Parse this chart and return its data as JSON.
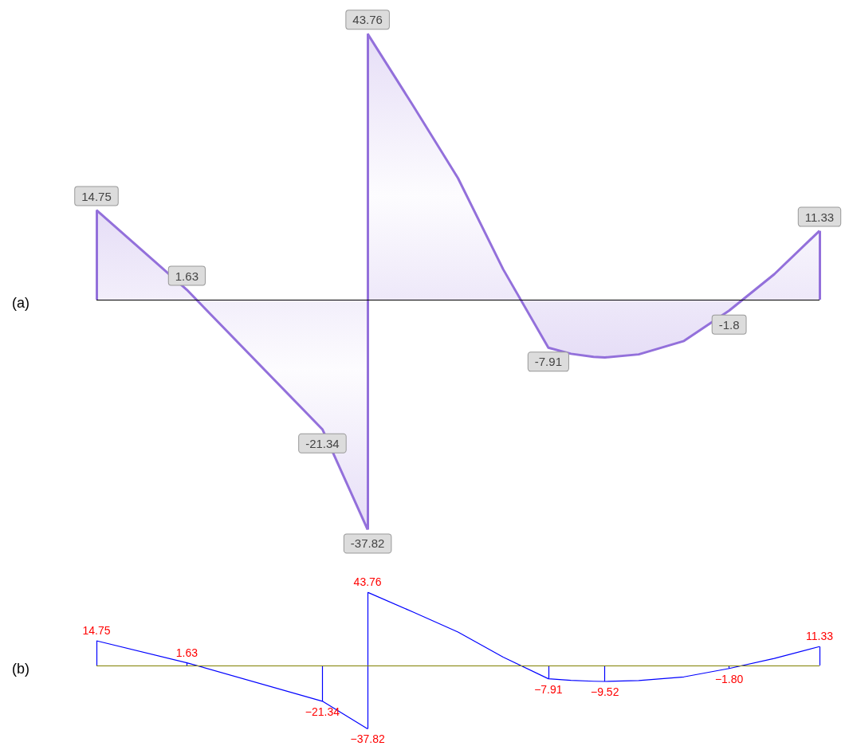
{
  "chart_data": [
    {
      "type": "area",
      "title": "(a)",
      "ref_lines": [
        {
          "axis": "y",
          "value": 0,
          "color": "#000000"
        }
      ],
      "categories": [
        null,
        null,
        null,
        null,
        null,
        null,
        null,
        null,
        null,
        null,
        null,
        null,
        null,
        null,
        null,
        null,
        null,
        null,
        null,
        null,
        null,
        null,
        null,
        null,
        null,
        null,
        null,
        null,
        null,
        null,
        null,
        null,
        null,
        null,
        null,
        null,
        null,
        null,
        null,
        null,
        null,
        null,
        null,
        null,
        null,
        null,
        null,
        null,
        null,
        null,
        null,
        null,
        null,
        null,
        null,
        null,
        null,
        null,
        null,
        null,
        null,
        null,
        null,
        null,
        null
      ],
      "series": [
        {
          "color": "#9370db",
          "values": [
            14.75,
            null,
            null,
            null,
            null,
            null,
            null,
            null,
            1.63,
            null,
            null,
            null,
            null,
            null,
            null,
            null,
            null,
            null,
            null,
            null,
            -21.34,
            null,
            null,
            null,
            -37.82,
            null,
            null,
            null,
            null,
            null,
            null,
            null,
            null,
            null,
            null,
            null,
            null,
            null,
            null,
            null,
            null,
            null,
            null,
            null,
            null,
            null,
            null,
            null,
            null,
            null,
            null,
            null,
            null,
            null,
            null,
            null,
            null,
            null,
            null,
            null,
            null,
            null,
            null,
            null,
            null
          ],
          "value_labels": [
            "14.75",
            null,
            null,
            null,
            null,
            null,
            null,
            null,
            "1.63",
            null,
            null,
            null,
            null,
            null,
            null,
            null,
            null,
            null,
            null,
            null,
            "-21.34",
            null,
            null,
            null,
            "-37.82",
            null,
            null,
            null,
            null,
            null,
            null,
            null,
            null,
            null,
            null,
            null,
            null,
            null,
            null,
            null,
            null,
            null,
            null,
            null,
            null,
            null,
            null,
            null,
            null,
            null,
            null,
            null,
            null,
            null,
            null,
            null,
            null,
            null,
            null,
            null,
            null,
            null,
            null,
            null,
            null
          ]
        },
        {
          "color": "#9370db",
          "values": [
            null,
            null,
            null,
            null,
            null,
            null,
            null,
            null,
            null,
            null,
            null,
            null,
            null,
            null,
            null,
            null,
            null,
            null,
            null,
            null,
            null,
            null,
            null,
            null,
            43.76,
            null,
            null,
            null,
            32,
            null,
            null,
            null,
            20,
            null,
            null,
            null,
            5,
            null,
            null,
            null,
            -7.91,
            null,
            -8.9,
            null,
            -9.4,
            -9.52,
            null,
            null,
            -9.0,
            null,
            null,
            null,
            -6.8,
            null,
            null,
            null,
            -1.8,
            null,
            null,
            null,
            4.2,
            null,
            null,
            null,
            11.33
          ],
          "value_labels": [
            null,
            null,
            null,
            null,
            null,
            null,
            null,
            null,
            null,
            null,
            null,
            null,
            null,
            null,
            null,
            null,
            null,
            null,
            null,
            null,
            null,
            null,
            null,
            null,
            "43.76",
            null,
            null,
            null,
            null,
            null,
            null,
            null,
            null,
            null,
            null,
            null,
            null,
            null,
            null,
            null,
            "-7.91",
            null,
            null,
            null,
            null,
            null,
            null,
            null,
            null,
            null,
            null,
            null,
            null,
            null,
            null,
            null,
            "-1.8",
            null,
            null,
            null,
            null,
            null,
            null,
            null,
            "11.33"
          ]
        }
      ]
    },
    {
      "type": "line",
      "title": "(b)",
      "ref_lines": [
        {
          "axis": "y",
          "value": 0,
          "color": "#808000"
        }
      ],
      "categories": [
        null,
        null,
        null,
        null,
        null,
        null,
        null,
        null,
        null,
        null,
        null,
        null,
        null,
        null,
        null,
        null,
        null,
        null,
        null,
        null,
        null,
        null,
        null,
        null,
        null,
        null,
        null,
        null,
        null,
        null,
        null,
        null,
        null,
        null,
        null,
        null,
        null,
        null,
        null,
        null,
        null,
        null,
        null,
        null,
        null,
        null,
        null,
        null,
        null,
        null,
        null,
        null,
        null,
        null,
        null,
        null,
        null,
        null,
        null,
        null,
        null,
        null,
        null,
        null,
        null
      ],
      "series": [
        {
          "color": "#0000ff",
          "values": [
            14.75,
            null,
            null,
            null,
            null,
            null,
            null,
            null,
            1.63,
            null,
            null,
            null,
            null,
            null,
            null,
            null,
            null,
            null,
            null,
            null,
            -21.34,
            null,
            null,
            null,
            -37.82,
            null,
            null,
            null,
            null,
            null,
            null,
            null,
            null,
            null,
            null,
            null,
            null,
            null,
            null,
            null,
            null,
            null,
            null,
            null,
            null,
            null,
            null,
            null,
            null,
            null,
            null,
            null,
            null,
            null,
            null,
            null,
            null,
            null,
            null,
            null,
            null,
            null,
            null,
            null,
            null
          ],
          "value_labels": [
            "14.75",
            null,
            null,
            null,
            null,
            null,
            null,
            null,
            "1.63",
            null,
            null,
            null,
            null,
            null,
            null,
            null,
            null,
            null,
            null,
            null,
            "−21.34",
            null,
            null,
            null,
            "−37.82",
            null,
            null,
            null,
            null,
            null,
            null,
            null,
            null,
            null,
            null,
            null,
            null,
            null,
            null,
            null,
            null,
            null,
            null,
            null,
            null,
            null,
            null,
            null,
            null,
            null,
            null,
            null,
            null,
            null,
            null,
            null,
            null,
            null,
            null,
            null,
            null,
            null,
            null,
            null,
            null
          ]
        },
        {
          "color": "#0000ff",
          "values": [
            null,
            null,
            null,
            null,
            null,
            null,
            null,
            null,
            null,
            null,
            null,
            null,
            null,
            null,
            null,
            null,
            null,
            null,
            null,
            null,
            null,
            null,
            null,
            null,
            43.76,
            null,
            null,
            null,
            32,
            null,
            null,
            null,
            20,
            null,
            null,
            null,
            5,
            null,
            null,
            null,
            -7.91,
            null,
            -8.9,
            null,
            -9.4,
            -9.52,
            null,
            null,
            -9.0,
            null,
            null,
            null,
            -6.8,
            null,
            null,
            null,
            -1.8,
            null,
            null,
            null,
            4.2,
            null,
            null,
            null,
            11.33
          ],
          "value_labels": [
            null,
            null,
            null,
            null,
            null,
            null,
            null,
            null,
            null,
            null,
            null,
            null,
            null,
            null,
            null,
            null,
            null,
            null,
            null,
            null,
            null,
            null,
            null,
            null,
            "43.76",
            null,
            null,
            null,
            null,
            null,
            null,
            null,
            null,
            null,
            null,
            null,
            null,
            null,
            null,
            null,
            "−7.91",
            null,
            null,
            null,
            null,
            "−9.52",
            null,
            null,
            null,
            null,
            null,
            null,
            null,
            null,
            null,
            null,
            "−1.80",
            null,
            null,
            null,
            null,
            null,
            null,
            null,
            "11.33"
          ]
        }
      ]
    }
  ]
}
